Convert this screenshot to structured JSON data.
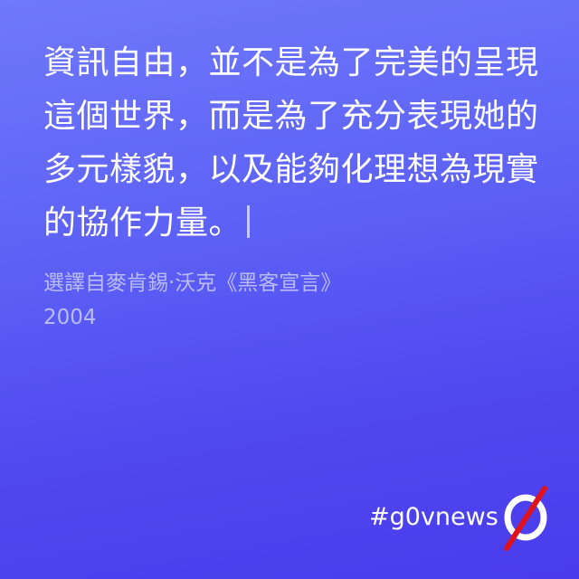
{
  "quote": {
    "lines": [
      "資訊自由，並不是為了完美的呈現",
      "這個世界，而是為了充分表現她的",
      "多元樣貌，以及能夠化理想為現實",
      "的協作力量。"
    ]
  },
  "source": {
    "attribution": "選譯自麥肯錫‧沃克《黑客宣言》",
    "year": "2004"
  },
  "brand": {
    "hashtag": "#g0vnews",
    "logo_icon": "g0v-zero-slash-logo-icon",
    "logo_ring_color": "#ffffff",
    "logo_slash_color": "#e0121b"
  },
  "colors": {
    "background_top": "#7078fb",
    "background_bottom": "#4a3cec",
    "quote_text": "#ffffff",
    "source_text": "#b9bcf8"
  }
}
